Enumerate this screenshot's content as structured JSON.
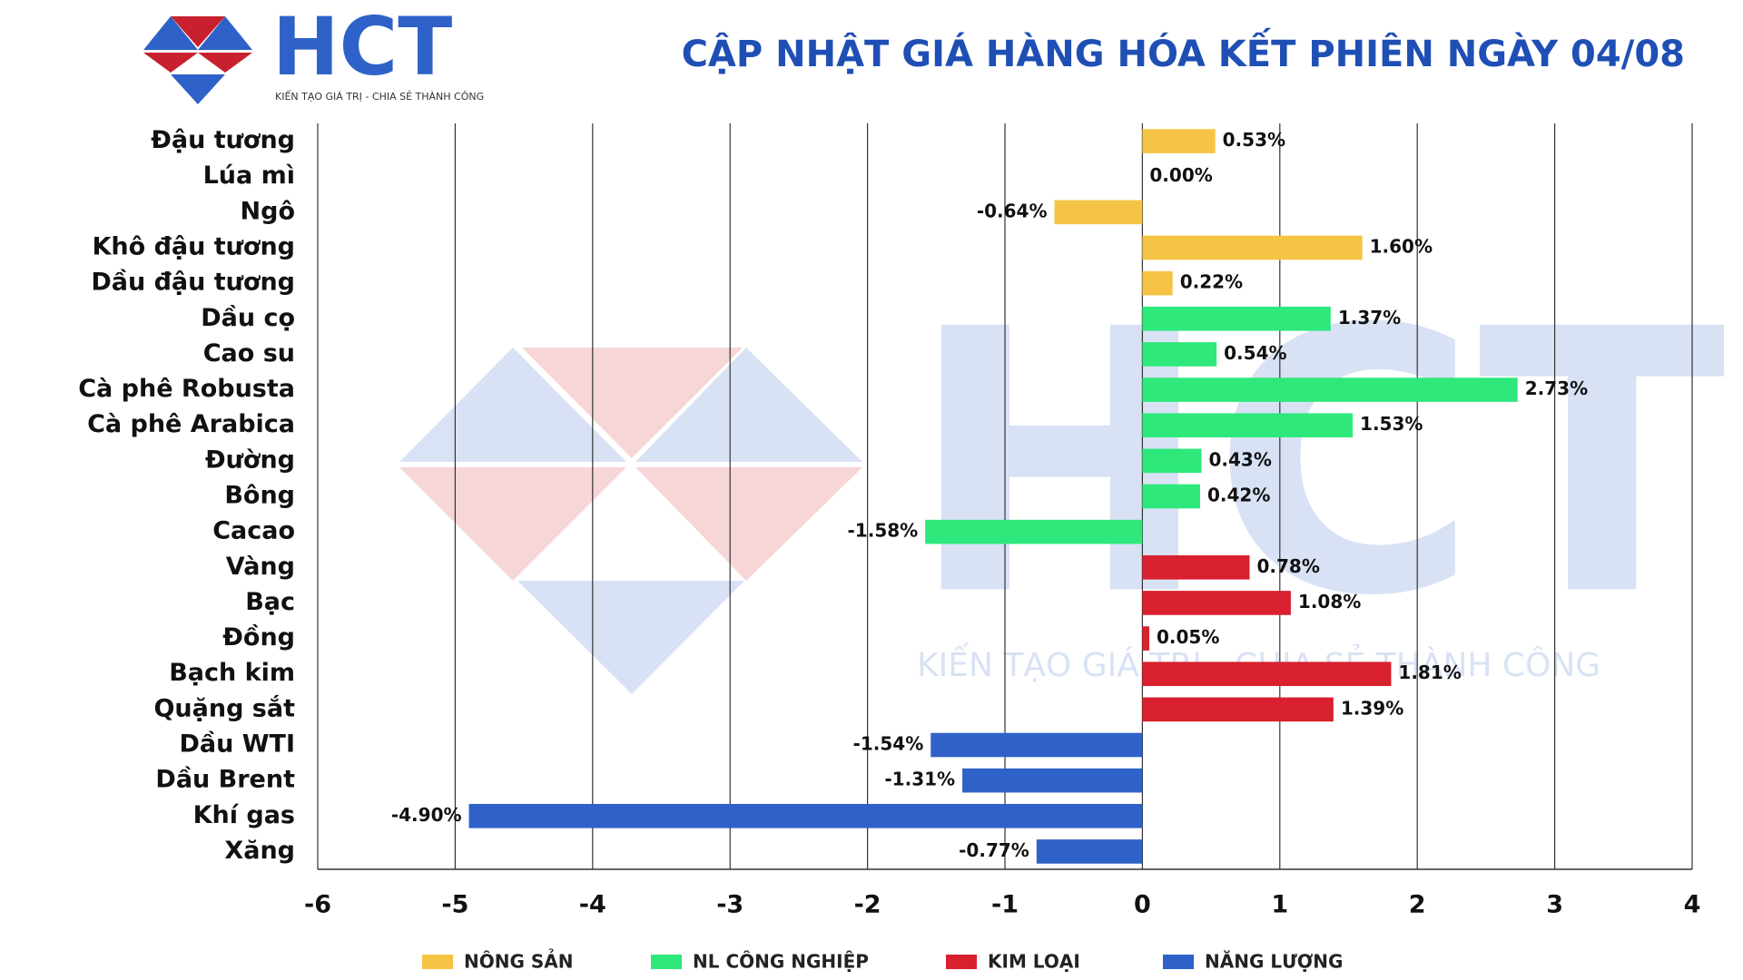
{
  "logo": {
    "name": "HCT",
    "slogan": "KIẾN TẠO GIÁ TRỊ - CHIA SẺ THÀNH CÔNG"
  },
  "chart_data": {
    "type": "hbar",
    "title": "CẬP NHẬT GIÁ HÀNG HÓA KẾT PHIÊN NGÀY 04/08",
    "categories": [
      "Đậu tương",
      "Lúa mì",
      "Ngô",
      "Khô đậu tương",
      "Dầu đậu tương",
      "Dầu cọ",
      "Cao su",
      "Cà phê Robusta",
      "Cà phê Arabica",
      "Đường",
      "Bông",
      "Cacao",
      "Vàng",
      "Bạc",
      "Đồng",
      "Bạch kim",
      "Quặng sắt",
      "Dầu WTI",
      "Dầu Brent",
      "Khí gas",
      "Xăng"
    ],
    "series": [
      {
        "name": "NÔNG SẢN",
        "color": "#f6c445",
        "values": [
          0.53,
          0.0,
          -0.64,
          1.6,
          0.22,
          null,
          null,
          null,
          null,
          null,
          null,
          null,
          null,
          null,
          null,
          null,
          null,
          null,
          null,
          null,
          null
        ],
        "value_labels": [
          "0.53%",
          "0.00%",
          "-0.64%",
          "1.60%",
          "0.22%",
          null,
          null,
          null,
          null,
          null,
          null,
          null,
          null,
          null,
          null,
          null,
          null,
          null,
          null,
          null,
          null
        ]
      },
      {
        "name": "NL CÔNG NGHIỆP",
        "color": "#2ee87c",
        "values": [
          null,
          null,
          null,
          null,
          null,
          1.37,
          0.54,
          2.73,
          1.53,
          0.43,
          0.42,
          -1.58,
          null,
          null,
          null,
          null,
          null,
          null,
          null,
          null,
          null
        ],
        "value_labels": [
          null,
          null,
          null,
          null,
          null,
          "1.37%",
          "0.54%",
          "2.73%",
          "1.53%",
          "0.43%",
          "0.42%",
          "-1.58%",
          null,
          null,
          null,
          null,
          null,
          null,
          null,
          null,
          null
        ]
      },
      {
        "name": "KIM LOẠI",
        "color": "#d8202e",
        "values": [
          null,
          null,
          null,
          null,
          null,
          null,
          null,
          null,
          null,
          null,
          null,
          null,
          0.78,
          1.08,
          0.05,
          1.81,
          1.39,
          null,
          null,
          null,
          null
        ],
        "value_labels": [
          null,
          null,
          null,
          null,
          null,
          null,
          null,
          null,
          null,
          null,
          null,
          null,
          "0.78%",
          "1.08%",
          "0.05%",
          "1.81%",
          "1.39%",
          null,
          null,
          null,
          null
        ]
      },
      {
        "name": "NĂNG LƯỢNG",
        "color": "#2f62c8",
        "values": [
          null,
          null,
          null,
          null,
          null,
          null,
          null,
          null,
          null,
          null,
          null,
          null,
          null,
          null,
          null,
          null,
          null,
          -1.54,
          -1.31,
          -4.9,
          -0.77
        ],
        "value_labels": [
          null,
          null,
          null,
          null,
          null,
          null,
          null,
          null,
          null,
          null,
          null,
          null,
          null,
          null,
          null,
          null,
          null,
          "-1.54%",
          "-1.31%",
          "-4.90%",
          "-0.77%"
        ]
      }
    ],
    "xlim": [
      -6,
      4
    ],
    "xticks": [
      -6,
      -5,
      -4,
      -3,
      -2,
      -1,
      0,
      1,
      2,
      3,
      4
    ],
    "grid": true
  }
}
